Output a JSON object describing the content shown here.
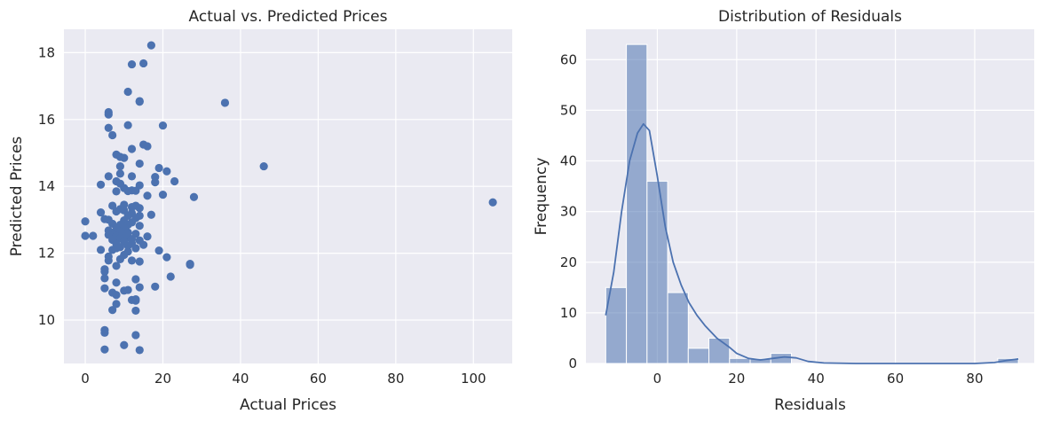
{
  "chart_data": [
    {
      "type": "scatter",
      "title": "Actual vs. Predicted Prices",
      "xlabel": "Actual Prices",
      "ylabel": "Predicted Prices",
      "xlim": [
        -5.5,
        110
      ],
      "ylim": [
        8.7,
        18.7
      ],
      "xticks": [
        0,
        20,
        40,
        60,
        80,
        100
      ],
      "yticks": [
        10,
        12,
        14,
        16,
        18
      ],
      "grid": true,
      "background": "#eaeaf2",
      "color": "#4c72b0",
      "points": [
        [
          17,
          18.22
        ],
        [
          15,
          17.68
        ],
        [
          12,
          17.65
        ],
        [
          11,
          16.83
        ],
        [
          14,
          16.55
        ],
        [
          14,
          16.53
        ],
        [
          36,
          16.5
        ],
        [
          6,
          16.22
        ],
        [
          6,
          16.15
        ],
        [
          11,
          15.83
        ],
        [
          20,
          15.82
        ],
        [
          6,
          15.75
        ],
        [
          7,
          15.53
        ],
        [
          15,
          15.25
        ],
        [
          16,
          15.2
        ],
        [
          12,
          15.12
        ],
        [
          8,
          14.95
        ],
        [
          9,
          14.88
        ],
        [
          10,
          14.85
        ],
        [
          14,
          14.68
        ],
        [
          46,
          14.6
        ],
        [
          19,
          14.55
        ],
        [
          9,
          14.6
        ],
        [
          21,
          14.45
        ],
        [
          9,
          14.38
        ],
        [
          18,
          14.28
        ],
        [
          6,
          14.3
        ],
        [
          12,
          14.3
        ],
        [
          23,
          14.15
        ],
        [
          8,
          14.15
        ],
        [
          18,
          14.12
        ],
        [
          9,
          14.08
        ],
        [
          4,
          14.05
        ],
        [
          14,
          14.03
        ],
        [
          10,
          13.95
        ],
        [
          12,
          13.88
        ],
        [
          13,
          13.87
        ],
        [
          11,
          13.86
        ],
        [
          8,
          13.85
        ],
        [
          20,
          13.75
        ],
        [
          16,
          13.72
        ],
        [
          28,
          13.68
        ],
        [
          105,
          13.52
        ],
        [
          7,
          13.42
        ],
        [
          10,
          13.45
        ],
        [
          13,
          13.42
        ],
        [
          12,
          13.38
        ],
        [
          14,
          13.35
        ],
        [
          9,
          13.32
        ],
        [
          10,
          13.28
        ],
        [
          8,
          13.25
        ],
        [
          4,
          13.22
        ],
        [
          12,
          13.2
        ],
        [
          17,
          13.15
        ],
        [
          11,
          13.12
        ],
        [
          14,
          13.12
        ],
        [
          13,
          13.05
        ],
        [
          5,
          13.02
        ],
        [
          6,
          13.0
        ],
        [
          0,
          12.95
        ],
        [
          10,
          12.98
        ],
        [
          12,
          12.92
        ],
        [
          7,
          12.88
        ],
        [
          9,
          12.85
        ],
        [
          11,
          12.85
        ],
        [
          14,
          12.82
        ],
        [
          10,
          12.75
        ],
        [
          8,
          12.72
        ],
        [
          6,
          12.68
        ],
        [
          9,
          12.65
        ],
        [
          11,
          12.62
        ],
        [
          7,
          12.6
        ],
        [
          13,
          12.58
        ],
        [
          10,
          12.58
        ],
        [
          6,
          12.55
        ],
        [
          8,
          12.52
        ],
        [
          0,
          12.52
        ],
        [
          2,
          12.52
        ],
        [
          16,
          12.5
        ],
        [
          11,
          12.48
        ],
        [
          9,
          12.45
        ],
        [
          12,
          12.42
        ],
        [
          7,
          12.4
        ],
        [
          14,
          12.38
        ],
        [
          10,
          12.35
        ],
        [
          12,
          12.3
        ],
        [
          8,
          12.28
        ],
        [
          15,
          12.25
        ],
        [
          11,
          12.22
        ],
        [
          9,
          12.18
        ],
        [
          13,
          12.15
        ],
        [
          8,
          12.15
        ],
        [
          7,
          12.1
        ],
        [
          4,
          12.1
        ],
        [
          19,
          12.08
        ],
        [
          11,
          12.05
        ],
        [
          10,
          11.95
        ],
        [
          6,
          11.9
        ],
        [
          21,
          11.88
        ],
        [
          9,
          11.82
        ],
        [
          6,
          11.78
        ],
        [
          12,
          11.78
        ],
        [
          14,
          11.75
        ],
        [
          27,
          11.68
        ],
        [
          27,
          11.65
        ],
        [
          8,
          11.62
        ],
        [
          5,
          11.52
        ],
        [
          5,
          11.45
        ],
        [
          22,
          11.3
        ],
        [
          5,
          11.25
        ],
        [
          13,
          11.22
        ],
        [
          8,
          11.12
        ],
        [
          18,
          11.0
        ],
        [
          5,
          10.95
        ],
        [
          14,
          10.98
        ],
        [
          11,
          10.9
        ],
        [
          10,
          10.88
        ],
        [
          7,
          10.82
        ],
        [
          8,
          10.75
        ],
        [
          13,
          10.62
        ],
        [
          12,
          10.6
        ],
        [
          13,
          10.58
        ],
        [
          8,
          10.48
        ],
        [
          7,
          10.3
        ],
        [
          13,
          10.28
        ],
        [
          5,
          9.7
        ],
        [
          5,
          9.62
        ],
        [
          13,
          9.55
        ],
        [
          10,
          9.25
        ],
        [
          5,
          9.12
        ],
        [
          14,
          9.1
        ]
      ]
    },
    {
      "type": "bar",
      "title": "Distribution of Residuals",
      "xlabel": "Residuals",
      "ylabel": "Frequency",
      "xlim": [
        -18,
        95
      ],
      "ylim": [
        0,
        66
      ],
      "xticks": [
        0,
        20,
        40,
        60,
        80
      ],
      "yticks": [
        0,
        10,
        20,
        30,
        40,
        50,
        60
      ],
      "grid": true,
      "background": "#eaeaf2",
      "color": "#4c72b0",
      "bin_edges": [
        -13,
        -7.8,
        -2.6,
        2.6,
        7.8,
        13.0,
        18.2,
        23.4,
        28.6,
        33.8,
        39.0,
        44.2,
        49.4,
        54.6,
        59.8,
        65.0,
        70.2,
        75.4,
        80.6,
        85.8,
        91.0
      ],
      "counts": [
        15,
        63,
        36,
        14,
        3,
        5,
        1,
        1,
        2,
        0,
        0,
        0,
        0,
        0,
        0,
        0,
        0,
        0,
        0,
        1
      ],
      "kde": {
        "x": [
          -13,
          -11,
          -9,
          -7,
          -5,
          -3.5,
          -2,
          0,
          2,
          4,
          6,
          8,
          10,
          12,
          15,
          18,
          20,
          23,
          26,
          29,
          32,
          35,
          38,
          42,
          50,
          60,
          70,
          80,
          85,
          88,
          91
        ],
        "y": [
          9.5,
          18,
          30,
          40,
          45.5,
          47.3,
          46,
          37,
          27,
          20,
          15.5,
          12,
          9.5,
          7.5,
          5,
          3.3,
          2,
          1,
          0.7,
          1,
          1.3,
          1.1,
          0.4,
          0.1,
          0,
          0,
          0,
          0,
          0.2,
          0.6,
          0.9
        ]
      }
    }
  ]
}
